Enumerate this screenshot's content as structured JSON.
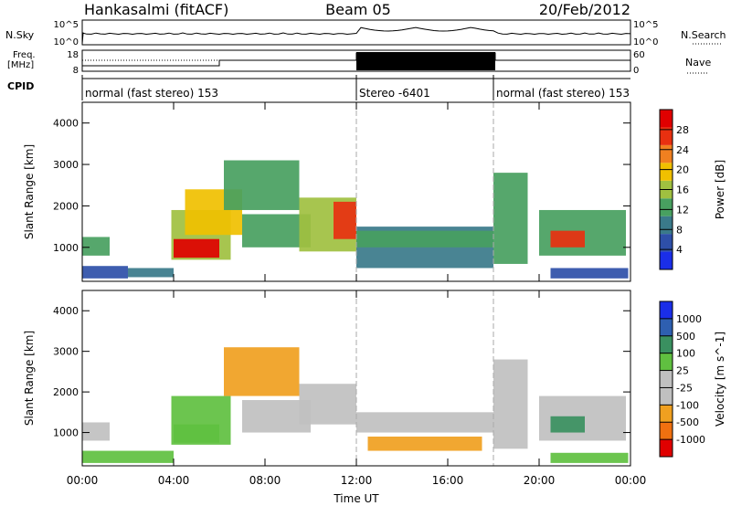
{
  "header": {
    "station": "Hankasalmi (fitACF)",
    "beam": "Beam 05",
    "date": "20/Feb/2012"
  },
  "strip": {
    "nsky_label": "N.Sky",
    "nsky_ticks": [
      "10^5",
      "10^0"
    ],
    "nsearch_label": "N.Search",
    "nsearch_ticks": [
      "10^5",
      "10^0"
    ],
    "freq_label_1": "Freq.",
    "freq_label_2": "[MHz]",
    "freq_ticks": [
      "18",
      "8"
    ],
    "nave_label": "Nave",
    "nave_ticks": [
      "60",
      "0"
    ],
    "cpid_label": "CPID",
    "cpid_segments": [
      {
        "label": "normal (fast stereo) 153",
        "start": 0,
        "end": 12
      },
      {
        "label": "Stereo -6401",
        "start": 12,
        "end": 18
      },
      {
        "label": "normal (fast stereo) 153",
        "start": 18,
        "end": 24
      }
    ]
  },
  "colors": {
    "power_scale": [
      "#1a2ee8",
      "#2e4fa8",
      "#3a7a8a",
      "#48a060",
      "#a0c040",
      "#f0c000",
      "#f08020",
      "#e83010",
      "#e00000"
    ],
    "velocity_scale": [
      "#e00000",
      "#f07010",
      "#f0a020",
      "#c0c0c0",
      "#c0c0c0",
      "#60c040",
      "#3a9060",
      "#2e5fb0",
      "#1a2ee8"
    ]
  },
  "chart_data": [
    {
      "type": "heatmap",
      "quantity": "Power",
      "ylabel": "Slant Range [km]",
      "xlabel": "",
      "x_range_hours": [
        0,
        24
      ],
      "ylim": [
        180,
        4500
      ],
      "yticks": [
        1000,
        2000,
        3000,
        4000
      ],
      "colorbar_label": "Power [dB]",
      "colorbar_ticks": [
        "4",
        "8",
        "12",
        "16",
        "20",
        "24",
        "28"
      ],
      "colorbar_range": [
        0,
        30
      ],
      "regions": [
        {
          "t0": 0.0,
          "t1": 1.2,
          "r0": 800,
          "r1": 1250,
          "v": 10
        },
        {
          "t0": 0.0,
          "t1": 2.0,
          "r0": 250,
          "r1": 550,
          "v": 6
        },
        {
          "t0": 2.0,
          "t1": 4.0,
          "r0": 280,
          "r1": 500,
          "v": 8
        },
        {
          "t0": 3.9,
          "t1": 6.5,
          "r0": 700,
          "r1": 1900,
          "v": 14
        },
        {
          "t0": 4.0,
          "t1": 6.0,
          "r0": 750,
          "r1": 1200,
          "v": 28
        },
        {
          "t0": 4.5,
          "t1": 7.0,
          "r0": 1300,
          "r1": 2400,
          "v": 18
        },
        {
          "t0": 6.2,
          "t1": 9.5,
          "r0": 1900,
          "r1": 3100,
          "v": 12
        },
        {
          "t0": 7.0,
          "t1": 10.0,
          "r0": 1000,
          "r1": 1800,
          "v": 10
        },
        {
          "t0": 9.5,
          "t1": 12.0,
          "r0": 900,
          "r1": 2200,
          "v": 14
        },
        {
          "t0": 11.0,
          "t1": 12.0,
          "r0": 1200,
          "r1": 2100,
          "v": 24
        },
        {
          "t0": 12.0,
          "t1": 18.0,
          "r0": 500,
          "r1": 1500,
          "v": 8
        },
        {
          "t0": 12.0,
          "t1": 18.0,
          "r0": 1000,
          "r1": 1400,
          "v": 12
        },
        {
          "t0": 18.0,
          "t1": 19.5,
          "r0": 600,
          "r1": 2800,
          "v": 10
        },
        {
          "t0": 20.0,
          "t1": 23.8,
          "r0": 800,
          "r1": 1900,
          "v": 12
        },
        {
          "t0": 20.5,
          "t1": 22.0,
          "r0": 1000,
          "r1": 1400,
          "v": 24
        },
        {
          "t0": 20.5,
          "t1": 23.9,
          "r0": 250,
          "r1": 500,
          "v": 6
        }
      ]
    },
    {
      "type": "heatmap",
      "quantity": "Velocity",
      "ylabel": "Slant Range [km]",
      "xlabel": "Time UT",
      "x_range_hours": [
        0,
        24
      ],
      "xticks": [
        "00:00",
        "04:00",
        "08:00",
        "12:00",
        "16:00",
        "20:00",
        "00:00"
      ],
      "ylim": [
        180,
        4500
      ],
      "yticks": [
        1000,
        2000,
        3000,
        4000
      ],
      "colorbar_label": "Velocity [m s^-1]",
      "colorbar_ticks": [
        "-1000",
        "-500",
        "-100",
        "-25",
        "25",
        "100",
        "500",
        "1000"
      ],
      "regions": [
        {
          "t0": 0.0,
          "t1": 1.2,
          "r0": 800,
          "r1": 1250,
          "v": 0
        },
        {
          "t0": 0.0,
          "t1": 4.0,
          "r0": 250,
          "r1": 550,
          "v": 60
        },
        {
          "t0": 3.9,
          "t1": 6.5,
          "r0": 700,
          "r1": 1900,
          "v": 80
        },
        {
          "t0": 4.0,
          "t1": 6.0,
          "r0": 750,
          "r1": 1200,
          "v": 30
        },
        {
          "t0": 6.2,
          "t1": 9.5,
          "r0": 1900,
          "r1": 3100,
          "v": -300
        },
        {
          "t0": 7.0,
          "t1": 10.0,
          "r0": 1000,
          "r1": 1800,
          "v": 20
        },
        {
          "t0": 9.5,
          "t1": 12.0,
          "r0": 1200,
          "r1": 2200,
          "v": 0
        },
        {
          "t0": 12.0,
          "t1": 18.0,
          "r0": 1000,
          "r1": 1500,
          "v": 0
        },
        {
          "t0": 12.5,
          "t1": 17.5,
          "r0": 550,
          "r1": 900,
          "v": -400
        },
        {
          "t0": 18.0,
          "t1": 19.5,
          "r0": 600,
          "r1": 2800,
          "v": 0
        },
        {
          "t0": 20.0,
          "t1": 23.8,
          "r0": 800,
          "r1": 1900,
          "v": 0
        },
        {
          "t0": 20.5,
          "t1": 22.0,
          "r0": 1000,
          "r1": 1400,
          "v": 200
        },
        {
          "t0": 20.5,
          "t1": 23.9,
          "r0": 250,
          "r1": 500,
          "v": 60
        }
      ]
    }
  ]
}
